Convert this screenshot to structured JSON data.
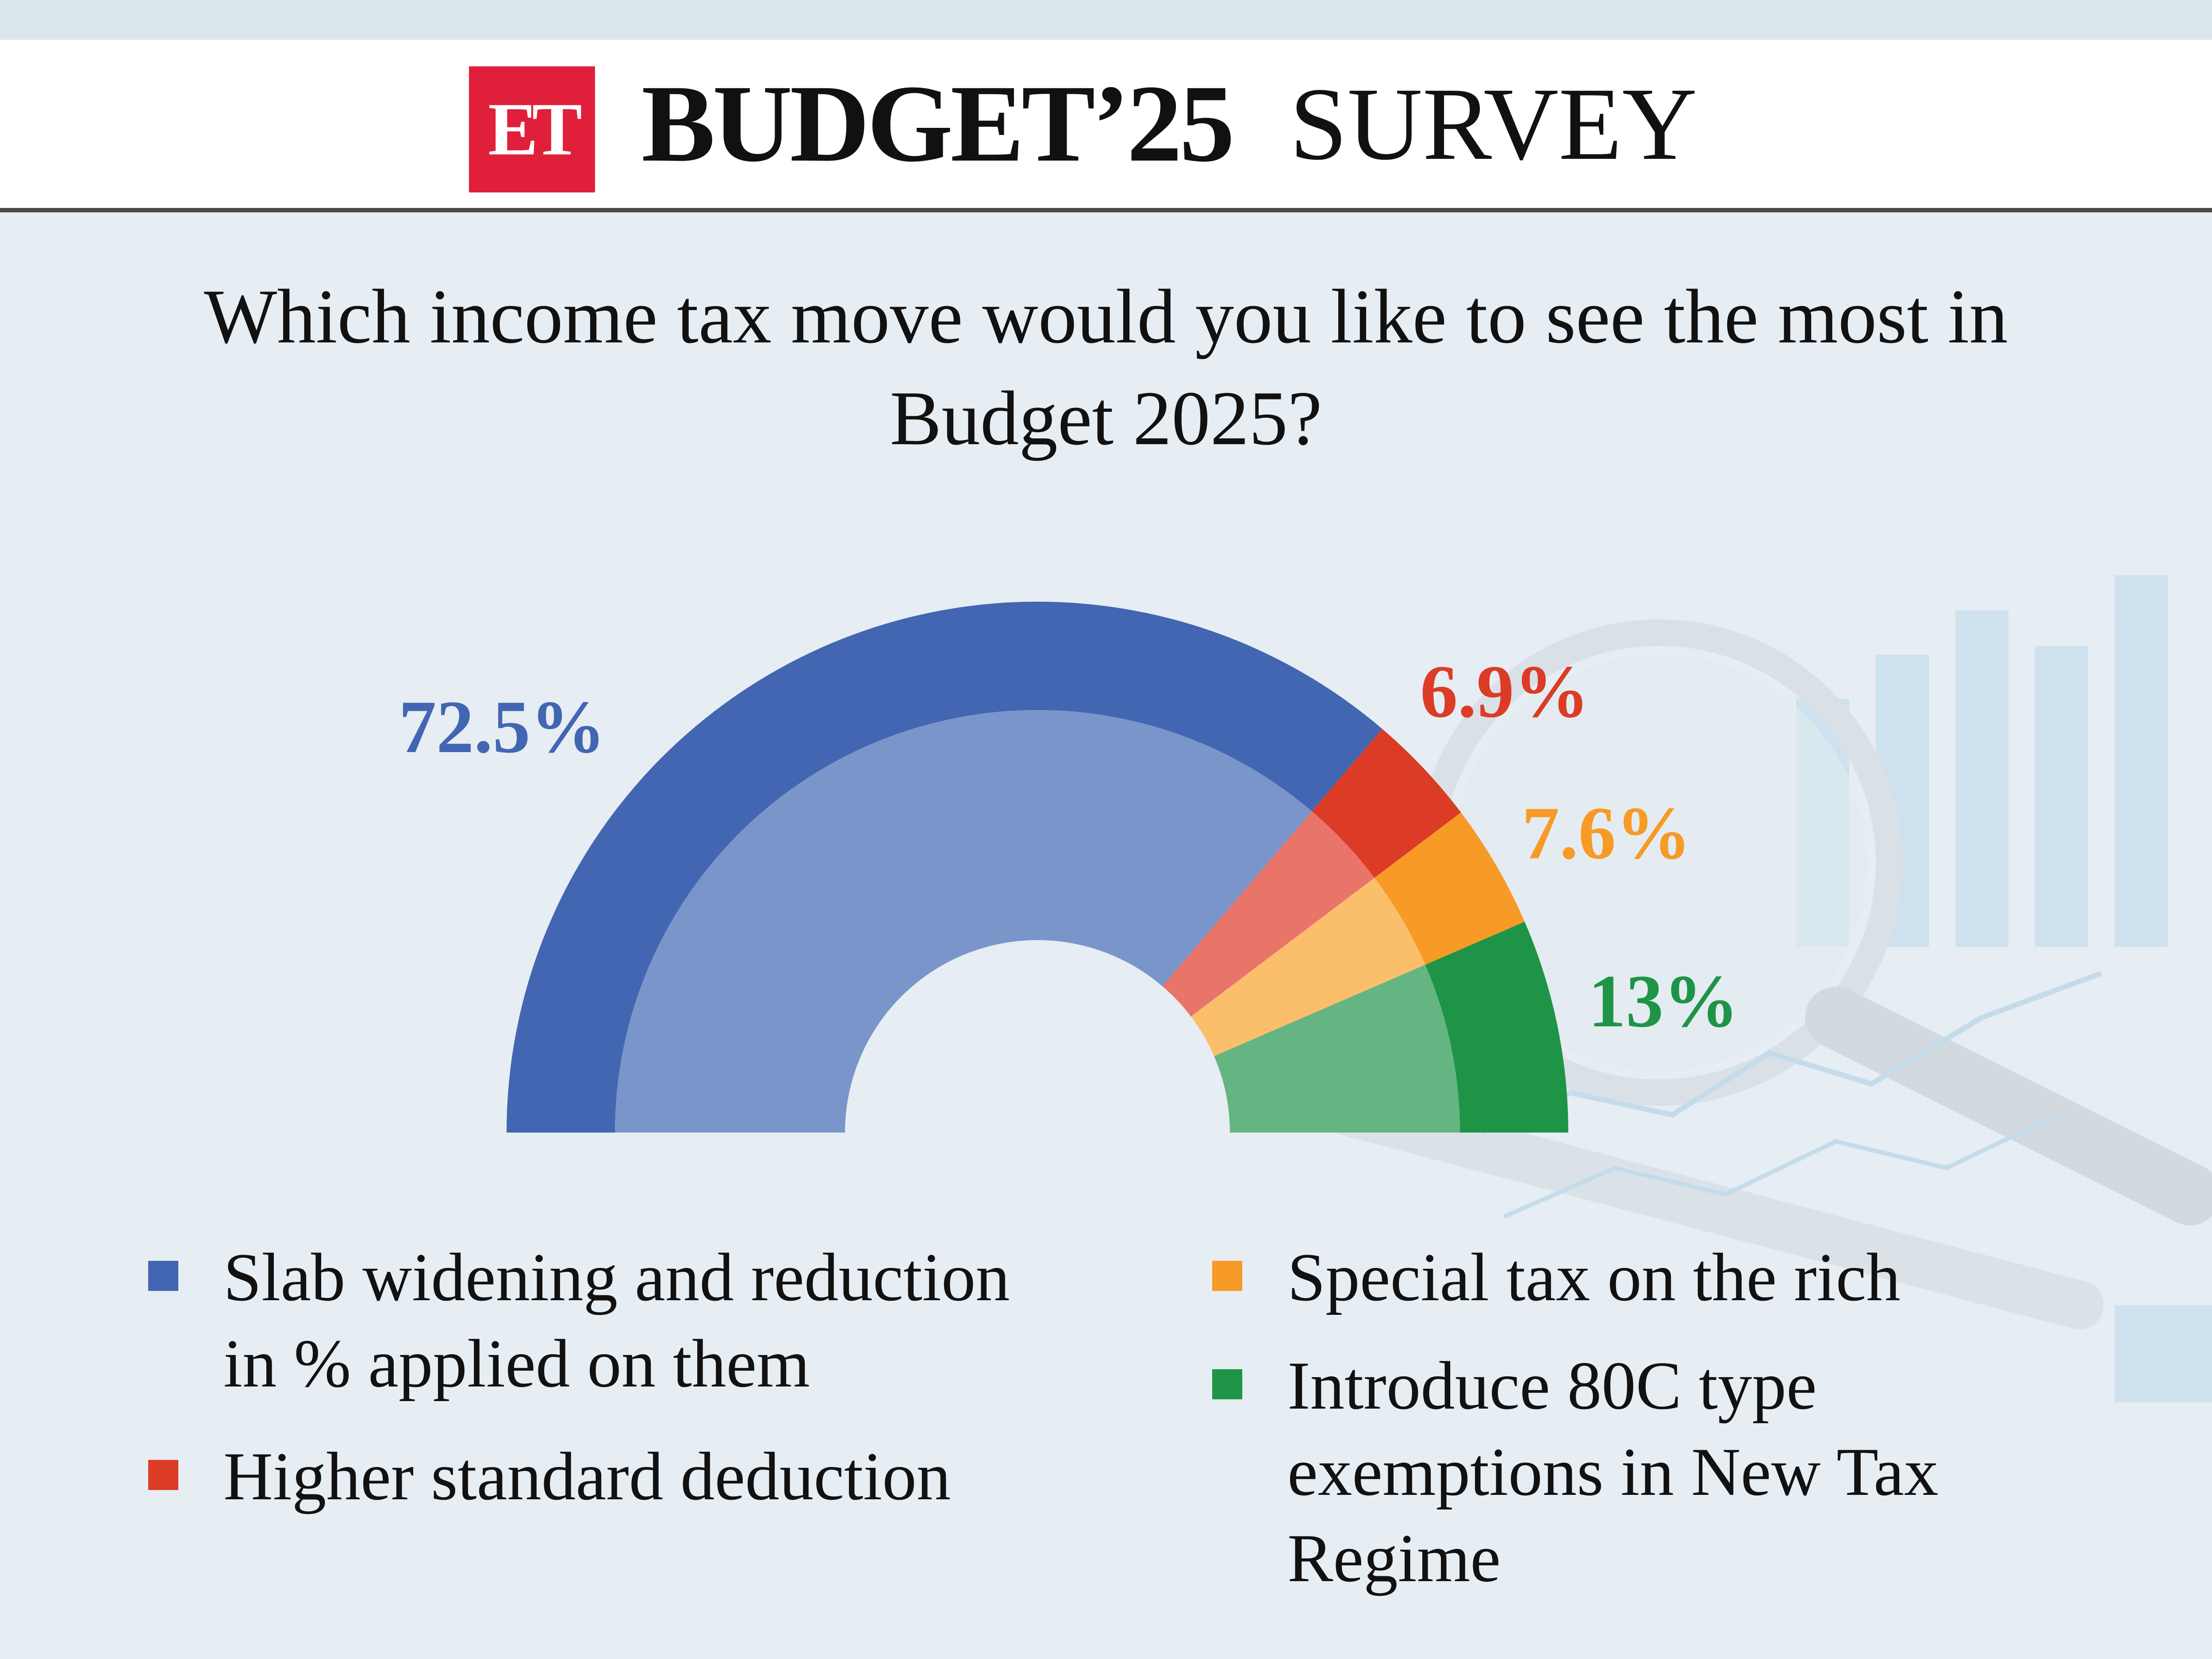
{
  "header": {
    "logo_text": "ET",
    "title": "BUDGET’25",
    "subtitle": "SURVEY"
  },
  "question": "Which income tax move would you like to see the most in Budget 2025?",
  "colors": {
    "blue": "#4266b2",
    "blue_light": "#7a95ca",
    "red": "#dc3b26",
    "red_light": "#e8746a",
    "orange": "#f79a26",
    "orange_light": "#fbbf6c",
    "green": "#1f9447",
    "green_light": "#64b582",
    "logo_red": "#e0203a"
  },
  "chart_data": {
    "type": "pie",
    "style": "semicircle-donut",
    "title": "",
    "slices": [
      {
        "label": "Slab widening and reduction in % applied on them",
        "value": 72.5,
        "value_label": "72.5%",
        "color": "#4266b2",
        "light": "#7a95ca"
      },
      {
        "label": "Higher standard deduction",
        "value": 6.9,
        "value_label": "6.9%",
        "color": "#dc3b26",
        "light": "#e8746a"
      },
      {
        "label": "Special tax on the rich",
        "value": 7.6,
        "value_label": "7.6%",
        "color": "#f79a26",
        "light": "#fbbf6c"
      },
      {
        "label": "Introduce 80C type exemptions in New Tax Regime",
        "value": 13,
        "value_label": "13%",
        "color": "#1f9447",
        "light": "#64b582"
      }
    ]
  },
  "legend": {
    "items": [
      {
        "lines": [
          "Slab widening and reduction",
          "in % applied on them"
        ],
        "color": "#4266b2"
      },
      {
        "lines": [
          "Higher standard deduction"
        ],
        "color": "#dc3b26"
      },
      {
        "lines": [
          "Special tax on the rich"
        ],
        "color": "#f79a26"
      },
      {
        "lines": [
          "Introduce 80C type",
          "exemptions in New Tax",
          "Regime"
        ],
        "color": "#1f9447"
      }
    ]
  }
}
